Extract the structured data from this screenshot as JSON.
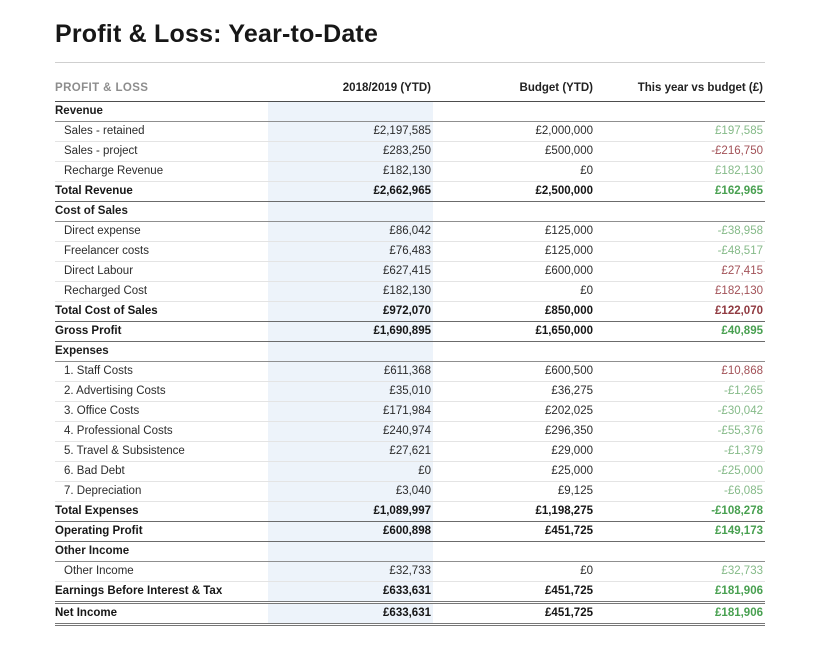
{
  "page": {
    "title": "Profit & Loss: Year-to-Date"
  },
  "colors": {
    "favorable_green": "#85ba88",
    "favorable_green_bold": "#48a050",
    "unfavorable_red": "#a25157",
    "unfavorable_red_bold": "#903a40",
    "ytd_column_highlight": "#edf3fa"
  },
  "table": {
    "headers": {
      "label": "PROFIT & LOSS",
      "ytd": "2018/2019 (YTD)",
      "budget": "Budget (YTD)",
      "variance": "This year vs budget (£)"
    },
    "rows": [
      {
        "type": "section",
        "label": "Revenue",
        "ytd": "",
        "budget": "",
        "variance": "",
        "tone": ""
      },
      {
        "type": "item",
        "label": "Sales - retained",
        "ytd": "£2,197,585",
        "budget": "£2,000,000",
        "variance": "£197,585",
        "tone": "green"
      },
      {
        "type": "item",
        "label": "Sales - project",
        "ytd": "£283,250",
        "budget": "£500,000",
        "variance": "-£216,750",
        "tone": "red"
      },
      {
        "type": "item",
        "label": "Recharge Revenue",
        "ytd": "£182,130",
        "budget": "£0",
        "variance": "£182,130",
        "tone": "green"
      },
      {
        "type": "total",
        "label": "Total Revenue",
        "ytd": "£2,662,965",
        "budget": "£2,500,000",
        "variance": "£162,965",
        "tone": "green"
      },
      {
        "type": "section",
        "label": "Cost of Sales",
        "ytd": "",
        "budget": "",
        "variance": "",
        "tone": ""
      },
      {
        "type": "item",
        "label": "Direct expense",
        "ytd": "£86,042",
        "budget": "£125,000",
        "variance": "-£38,958",
        "tone": "green"
      },
      {
        "type": "item",
        "label": "Freelancer costs",
        "ytd": "£76,483",
        "budget": "£125,000",
        "variance": "-£48,517",
        "tone": "green"
      },
      {
        "type": "item",
        "label": "Direct Labour",
        "ytd": "£627,415",
        "budget": "£600,000",
        "variance": "£27,415",
        "tone": "red"
      },
      {
        "type": "item",
        "label": "Recharged Cost",
        "ytd": "£182,130",
        "budget": "£0",
        "variance": "£182,130",
        "tone": "red"
      },
      {
        "type": "total",
        "label": "Total Cost of Sales",
        "ytd": "£972,070",
        "budget": "£850,000",
        "variance": "£122,070",
        "tone": "red"
      },
      {
        "type": "total",
        "label": "Gross Profit",
        "ytd": "£1,690,895",
        "budget": "£1,650,000",
        "variance": "£40,895",
        "tone": "green"
      },
      {
        "type": "section",
        "label": "Expenses",
        "ytd": "",
        "budget": "",
        "variance": "",
        "tone": ""
      },
      {
        "type": "item",
        "label": "1. Staff Costs",
        "ytd": "£611,368",
        "budget": "£600,500",
        "variance": "£10,868",
        "tone": "red"
      },
      {
        "type": "item",
        "label": "2. Advertising Costs",
        "ytd": "£35,010",
        "budget": "£36,275",
        "variance": "-£1,265",
        "tone": "green"
      },
      {
        "type": "item",
        "label": "3. Office Costs",
        "ytd": "£171,984",
        "budget": "£202,025",
        "variance": "-£30,042",
        "tone": "green"
      },
      {
        "type": "item",
        "label": "4. Professional Costs",
        "ytd": "£240,974",
        "budget": "£296,350",
        "variance": "-£55,376",
        "tone": "green"
      },
      {
        "type": "item",
        "label": "5. Travel & Subsistence",
        "ytd": "£27,621",
        "budget": "£29,000",
        "variance": "-£1,379",
        "tone": "green"
      },
      {
        "type": "item",
        "label": "6. Bad Debt",
        "ytd": "£0",
        "budget": "£25,000",
        "variance": "-£25,000",
        "tone": "green"
      },
      {
        "type": "item",
        "label": "7. Depreciation",
        "ytd": "£3,040",
        "budget": "£9,125",
        "variance": "-£6,085",
        "tone": "green"
      },
      {
        "type": "total",
        "label": "Total Expenses",
        "ytd": "£1,089,997",
        "budget": "£1,198,275",
        "variance": "-£108,278",
        "tone": "green"
      },
      {
        "type": "total",
        "label": "Operating Profit",
        "ytd": "£600,898",
        "budget": "£451,725",
        "variance": "£149,173",
        "tone": "green"
      },
      {
        "type": "section",
        "label": "Other Income",
        "ytd": "",
        "budget": "",
        "variance": "",
        "tone": ""
      },
      {
        "type": "item",
        "label": "Other Income",
        "ytd": "£32,733",
        "budget": "£0",
        "variance": "£32,733",
        "tone": "green"
      },
      {
        "type": "grandtotal",
        "label": "Earnings Before Interest & Tax",
        "ytd": "£633,631",
        "budget": "£451,725",
        "variance": "£181,906",
        "tone": "green"
      },
      {
        "type": "grandtotal",
        "label": "Net Income",
        "ytd": "£633,631",
        "budget": "£451,725",
        "variance": "£181,906",
        "tone": "green"
      }
    ]
  }
}
